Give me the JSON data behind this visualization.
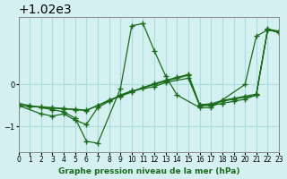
{
  "background_color": "#d4f0f0",
  "grid_color": "#aadddd",
  "line_color": "#1a6b1a",
  "marker_color": "#1a6b1a",
  "title": "Graphe pression niveau de la mer (hPa)",
  "xlabel": "",
  "ylabel": "",
  "xlim": [
    0,
    23
  ],
  "ylim": [
    1018.4,
    1021.6
  ],
  "yticks": [
    1019,
    1020
  ],
  "xticks": [
    0,
    1,
    2,
    3,
    4,
    5,
    6,
    7,
    8,
    9,
    10,
    11,
    12,
    13,
    14,
    15,
    16,
    17,
    18,
    19,
    20,
    21,
    22,
    23
  ],
  "series": [
    {
      "x": [
        0,
        1,
        3,
        4,
        5,
        6,
        7,
        9,
        10,
        11,
        12,
        13,
        14,
        16,
        17,
        20,
        21,
        22,
        23
      ],
      "y": [
        1019.55,
        1019.5,
        1019.4,
        1019.35,
        1019.2,
        1018.65,
        1018.6,
        1019.9,
        1021.4,
        1021.45,
        1020.8,
        1020.2,
        1019.75,
        1019.45,
        1019.45,
        1020.0,
        1021.15,
        1021.3,
        1021.25
      ]
    },
    {
      "x": [
        0,
        2,
        3,
        4,
        5,
        6,
        7,
        8,
        9,
        10,
        12,
        13,
        15,
        16,
        17,
        18,
        19,
        20,
        21,
        22,
        23
      ],
      "y": [
        1019.5,
        1019.3,
        1019.25,
        1019.3,
        1019.15,
        1019.05,
        1019.45,
        1019.6,
        1019.75,
        1019.85,
        1019.95,
        1020.05,
        1020.15,
        1019.5,
        1019.5,
        1019.55,
        1019.6,
        1019.65,
        1019.75,
        1021.3,
        1021.25
      ]
    },
    {
      "x": [
        0,
        1,
        2,
        3,
        4,
        5,
        6,
        7,
        8,
        9,
        10,
        11,
        12,
        13,
        14,
        15,
        16,
        17,
        18,
        19,
        20,
        21,
        22,
        23
      ],
      "y": [
        1019.5,
        1019.48,
        1019.46,
        1019.44,
        1019.42,
        1019.4,
        1019.38,
        1019.5,
        1019.62,
        1019.72,
        1019.82,
        1019.92,
        1020.0,
        1020.08,
        1020.15,
        1020.22,
        1019.5,
        1019.52,
        1019.6,
        1019.65,
        1019.7,
        1019.75,
        1021.3,
        1021.25
      ]
    },
    {
      "x": [
        0,
        1,
        2,
        3,
        4,
        5,
        6,
        7,
        8,
        9,
        10,
        11,
        12,
        13,
        14,
        15,
        16,
        17,
        18,
        19,
        20,
        21,
        22,
        23
      ],
      "y": [
        1019.5,
        1019.48,
        1019.47,
        1019.45,
        1019.43,
        1019.41,
        1019.39,
        1019.5,
        1019.63,
        1019.73,
        1019.83,
        1019.93,
        1020.02,
        1020.1,
        1020.17,
        1020.24,
        1019.52,
        1019.54,
        1019.62,
        1019.67,
        1019.72,
        1019.77,
        1021.32,
        1021.27
      ]
    }
  ]
}
